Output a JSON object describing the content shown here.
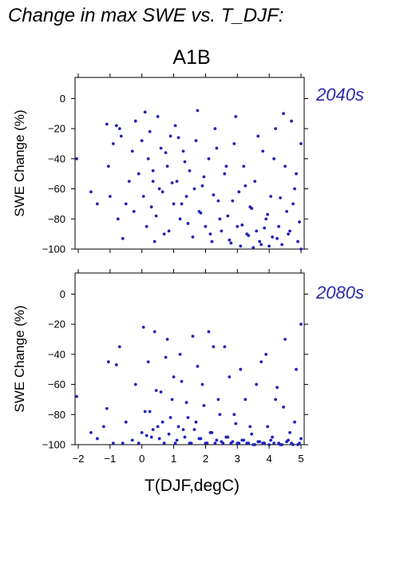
{
  "title": "Change in max SWE vs. T_DJF:",
  "scenario": "A1B",
  "colors": {
    "points": "#2222bb",
    "period_label": "#2a2aaa",
    "axes": "#000000"
  },
  "chart_data": [
    {
      "type": "scatter",
      "period_label": "2040s",
      "ylabel": "SWE Change (%)",
      "xlabel": "",
      "xlim": [
        -2.1,
        5.1
      ],
      "ylim": [
        -100,
        14
      ],
      "yticks": [
        0,
        -20,
        -40,
        -60,
        -80,
        -100
      ],
      "ytick_labels": [
        "0",
        "−20",
        "−40",
        "−60",
        "−80",
        "−100"
      ],
      "x": [
        -2.05,
        -1.6,
        -1.4,
        -1.1,
        -1.05,
        -1.0,
        -0.9,
        -0.8,
        -0.75,
        -0.7,
        -0.65,
        -0.6,
        -0.5,
        -0.4,
        -0.3,
        -0.25,
        -0.2,
        -0.1,
        0.0,
        0.05,
        0.1,
        0.15,
        0.2,
        0.25,
        0.3,
        0.35,
        0.4,
        0.5,
        0.55,
        0.6,
        0.7,
        0.8,
        0.9,
        1.0,
        1.05,
        1.1,
        1.2,
        1.3,
        1.4,
        1.5,
        1.6,
        1.7,
        1.8,
        1.9,
        2.0,
        2.1,
        2.2,
        2.3,
        2.4,
        2.5,
        2.6,
        2.7,
        2.8,
        2.9,
        3.0,
        3.05,
        3.1,
        3.2,
        3.3,
        3.4,
        3.5,
        3.55,
        3.6,
        3.7,
        3.8,
        3.9,
        4.0,
        4.05,
        4.1,
        4.2,
        4.3,
        4.4,
        4.5,
        4.55,
        4.6,
        4.7,
        4.8,
        4.9,
        5.0,
        5.0,
        4.95,
        4.85,
        4.75,
        4.65,
        4.45,
        4.35,
        4.25,
        4.15,
        3.95,
        3.85,
        3.75,
        3.65,
        3.45,
        3.35,
        3.25,
        3.15,
        2.95,
        2.85,
        2.75,
        2.65,
        2.45,
        2.35,
        2.25,
        2.15,
        1.95,
        1.85,
        1.75,
        1.65,
        1.45,
        1.35,
        1.25,
        1.15,
        0.95,
        0.85,
        0.75,
        0.65,
        0.45,
        0.35
      ],
      "y": [
        -40,
        -62,
        -70,
        -17,
        -45,
        -65,
        -30,
        -18,
        -80,
        -20,
        -25,
        -93,
        -70,
        -55,
        -35,
        -75,
        -15,
        -50,
        -28,
        -65,
        -9,
        -85,
        -40,
        -22,
        -72,
        -55,
        -95,
        -12,
        -60,
        -33,
        -90,
        -45,
        -25,
        -70,
        -18,
        -55,
        -80,
        -35,
        -65,
        -48,
        -92,
        -28,
        -75,
        -58,
        -85,
        -40,
        -95,
        -20,
        -68,
        -88,
        -50,
        -78,
        -96,
        -30,
        -85,
        -62,
        -98,
        -45,
        -90,
        -72,
        -99,
        -55,
        -88,
        -95,
        -35,
        -80,
        -98,
        -65,
        -92,
        -20,
        -85,
        -97,
        -45,
        -75,
        -90,
        -15,
        -60,
        -95,
        -100,
        -30,
        -82,
        -50,
        -70,
        -88,
        -10,
        -66,
        -93,
        -40,
        -77,
        -86,
        -97,
        -25,
        -73,
        -91,
        -58,
        -84,
        -12,
        -68,
        -94,
        -45,
        -80,
        -33,
        -64,
        -90,
        -52,
        -76,
        -8,
        -60,
        -83,
        -42,
        -70,
        -26,
        -56,
        -88,
        -36,
        -62,
        -78,
        -48
      ]
    },
    {
      "type": "scatter",
      "period_label": "2080s",
      "ylabel": "SWE Change (%)",
      "xlabel": "T(DJF,degC)",
      "xlim": [
        -2.1,
        5.1
      ],
      "ylim": [
        -100,
        14
      ],
      "yticks": [
        0,
        -20,
        -40,
        -60,
        -80,
        -100
      ],
      "ytick_labels": [
        "0",
        "−20",
        "−40",
        "−60",
        "−80",
        "−100"
      ],
      "xticks": [
        -2,
        -1,
        0,
        1,
        2,
        3,
        4,
        5
      ],
      "xtick_labels": [
        "−2",
        "−1",
        "0",
        "1",
        "2",
        "3",
        "4",
        "5"
      ],
      "x": [
        -2.05,
        -1.6,
        -1.4,
        -1.2,
        -1.1,
        -1.05,
        -0.9,
        -0.8,
        -0.7,
        -0.6,
        -0.5,
        -0.3,
        -0.2,
        -0.1,
        0.0,
        0.05,
        0.1,
        0.2,
        0.3,
        0.4,
        0.5,
        0.6,
        0.7,
        0.8,
        0.9,
        1.0,
        1.1,
        1.2,
        1.3,
        1.4,
        1.5,
        1.6,
        1.7,
        1.8,
        1.9,
        2.0,
        2.1,
        2.2,
        2.3,
        2.4,
        2.5,
        2.6,
        2.7,
        2.8,
        2.9,
        3.0,
        3.1,
        3.2,
        3.3,
        3.4,
        3.5,
        3.6,
        3.7,
        3.8,
        3.9,
        4.0,
        4.1,
        4.2,
        4.3,
        4.4,
        4.5,
        4.6,
        4.7,
        4.8,
        4.9,
        5.0,
        5.0,
        4.95,
        4.85,
        4.75,
        4.65,
        4.55,
        4.45,
        4.35,
        4.25,
        4.15,
        4.05,
        3.95,
        3.85,
        3.75,
        3.65,
        3.55,
        3.45,
        3.35,
        3.25,
        3.15,
        3.05,
        2.95,
        2.85,
        2.75,
        2.65,
        2.55,
        2.45,
        2.35,
        2.25,
        2.15,
        2.05,
        1.95,
        1.85,
        1.75,
        1.65,
        1.55,
        1.45,
        1.35,
        1.25,
        1.15,
        1.05,
        0.95,
        0.85,
        0.75,
        0.65,
        0.55,
        0.45,
        0.35,
        0.25,
        0.15
      ],
      "y": [
        -68,
        -92,
        -96,
        -88,
        -76,
        -45,
        -99,
        -47,
        -35,
        -99,
        -85,
        -97,
        -60,
        -99,
        -92,
        -22,
        -78,
        -45,
        -95,
        -25,
        -88,
        -65,
        -99,
        -30,
        -82,
        -55,
        -97,
        -40,
        -90,
        -72,
        -99,
        -28,
        -85,
        -96,
        -60,
        -99,
        -25,
        -92,
        -99,
        -70,
        -98,
        -35,
        -95,
        -99,
        -80,
        -99,
        -50,
        -97,
        -99,
        -88,
        -100,
        -60,
        -98,
        -99,
        -40,
        -100,
        -95,
        -70,
        -99,
        -100,
        -30,
        -97,
        -99,
        -85,
        -100,
        -20,
        -96,
        -99,
        -50,
        -100,
        -92,
        -98,
        -75,
        -100,
        -62,
        -99,
        -97,
        -88,
        -99,
        -45,
        -98,
        -100,
        -93,
        -99,
        -70,
        -97,
        -99,
        -86,
        -98,
        -55,
        -95,
        -99,
        -80,
        -97,
        -35,
        -92,
        -99,
        -74,
        -96,
        -48,
        -90,
        -99,
        -82,
        -95,
        -58,
        -88,
        -99,
        -70,
        -93,
        -42,
        -85,
        -96,
        -64,
        -90,
        -78,
        -94
      ]
    }
  ]
}
